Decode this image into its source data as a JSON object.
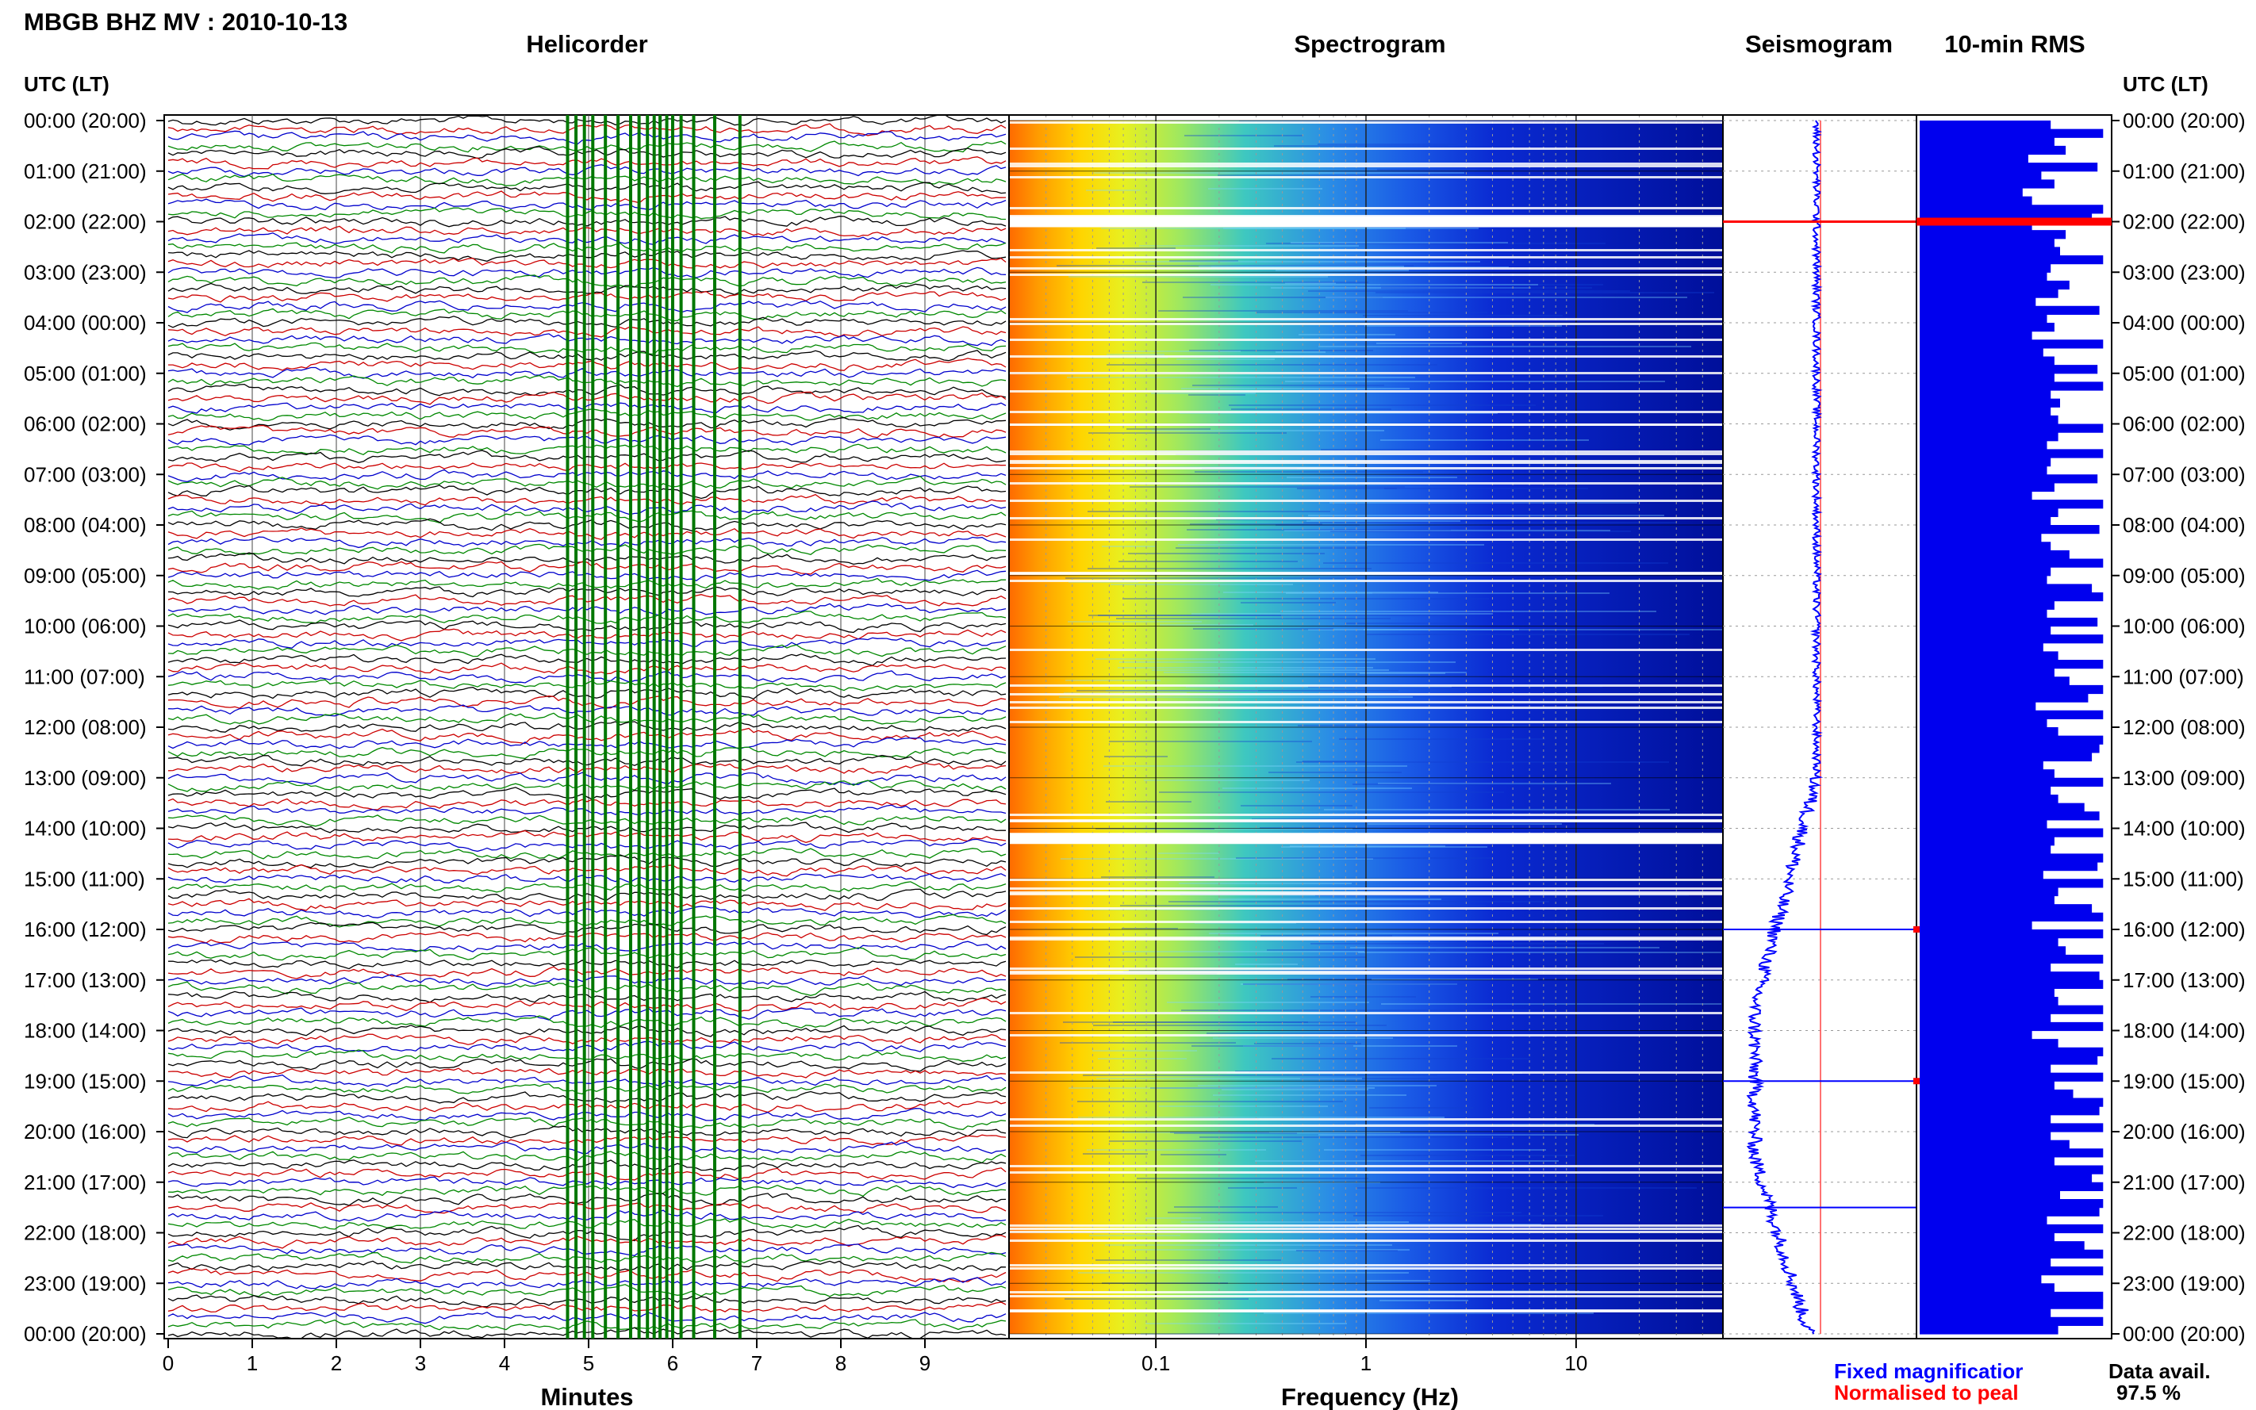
{
  "page": {
    "title": "MBGB BHZ MV : 2010-10-13"
  },
  "panels": {
    "helicorder": {
      "title": "Helicorder",
      "xlabel": "Minutes",
      "xticks": [
        "0",
        "1",
        "2",
        "3",
        "4",
        "5",
        "6",
        "7",
        "8",
        "9"
      ]
    },
    "spectrogram": {
      "title": "Spectrogram",
      "xlabel": "Frequency (Hz)",
      "xticks": [
        "0.1",
        "1",
        "10"
      ]
    },
    "seismogram": {
      "title": "Seismogram"
    },
    "rms": {
      "title": "10-min RMS"
    }
  },
  "time_axis": {
    "left_label": "UTC (LT)",
    "right_label": "UTC (LT)",
    "ticks": [
      "00:00 (20:00)",
      "01:00 (21:00)",
      "02:00 (22:00)",
      "03:00 (23:00)",
      "04:00 (00:00)",
      "05:00 (01:00)",
      "06:00 (02:00)",
      "07:00 (03:00)",
      "08:00 (04:00)",
      "09:00 (05:00)",
      "10:00 (06:00)",
      "11:00 (07:00)",
      "12:00 (08:00)",
      "13:00 (09:00)",
      "14:00 (10:00)",
      "15:00 (11:00)",
      "16:00 (12:00)",
      "17:00 (13:00)",
      "18:00 (14:00)",
      "19:00 (15:00)",
      "20:00 (16:00)",
      "21:00 (17:00)",
      "22:00 (18:00)",
      "23:00 (19:00)",
      "00:00 (20:00)"
    ]
  },
  "legend": {
    "fixed": "Fixed magnificatior",
    "normalised": "Normalised to peal",
    "fixed_color": "#0000ff",
    "normalised_color": "#ff0000"
  },
  "availability": {
    "label": "Data avail.",
    "value": "97.5 %"
  },
  "colors": {
    "trace_cycle": [
      "#000000",
      "#cc0000",
      "#0000cc",
      "#008800"
    ],
    "event_line": "#007700",
    "spectro_low": "#00008b",
    "rms_bar": "#0000ee"
  },
  "chart_data": {
    "type": "heatmap",
    "date": "2010-10-13",
    "channel": "MBGB BHZ MV",
    "hours": [
      "00:00",
      "01:00",
      "02:00",
      "03:00",
      "04:00",
      "05:00",
      "06:00",
      "07:00",
      "08:00",
      "09:00",
      "10:00",
      "11:00",
      "12:00",
      "13:00",
      "14:00",
      "15:00",
      "16:00",
      "17:00",
      "18:00",
      "19:00",
      "20:00",
      "21:00",
      "22:00",
      "23:00",
      "00:00"
    ],
    "helicorder": {
      "x_range_minutes": [
        0,
        10
      ],
      "traces_per_hour": 6,
      "event_minutes": [
        4.75,
        4.85,
        4.95,
        5.05,
        5.2,
        5.35,
        5.5,
        5.6,
        5.7,
        5.78,
        5.85,
        5.93,
        6.0,
        6.1,
        6.25,
        6.5,
        6.8
      ]
    },
    "spectrogram": {
      "x_scale": "log",
      "x_range_hz": [
        0.02,
        50
      ],
      "gap_hours": [
        2.0,
        14.2
      ]
    },
    "rms_10min": {
      "x_scale": "relative",
      "values": [
        0.7,
        0.98,
        0.72,
        0.78,
        0.58,
        0.95,
        0.65,
        0.72,
        0.55,
        0.6,
        0.98,
        0.92,
        0.6,
        0.78,
        0.72,
        0.75,
        0.98,
        0.7,
        0.68,
        0.8,
        0.74,
        0.62,
        0.96,
        0.68,
        0.72,
        0.6,
        0.98,
        0.66,
        0.72,
        0.95,
        0.72,
        0.98,
        0.7,
        0.75,
        0.7,
        0.74,
        0.98,
        0.74,
        0.68,
        0.98,
        0.7,
        0.68,
        0.95,
        0.72,
        0.6,
        0.98,
        0.74,
        0.7,
        0.96,
        0.65,
        0.7,
        0.8,
        0.98,
        0.7,
        0.68,
        0.92,
        0.98,
        0.72,
        0.68,
        0.95,
        0.7,
        0.98,
        0.66,
        0.74,
        0.98,
        0.72,
        0.8,
        0.98,
        0.9,
        0.62,
        0.98,
        0.68,
        0.74,
        0.98,
        0.96,
        0.92,
        0.66,
        0.72,
        0.98,
        0.7,
        0.74,
        0.88,
        0.96,
        0.68,
        0.98,
        0.72,
        0.7,
        0.98,
        0.95,
        0.66,
        0.98,
        0.74,
        0.72,
        0.92,
        0.98,
        0.6,
        0.98,
        0.74,
        0.78,
        0.98,
        0.7,
        0.96,
        0.98,
        0.72,
        0.74,
        0.98,
        0.7,
        0.98,
        0.6,
        0.74,
        0.98,
        0.95,
        0.7,
        0.98,
        0.72,
        0.82,
        0.98,
        0.96,
        0.7,
        0.98,
        0.7,
        0.8,
        0.98,
        0.72,
        0.98,
        0.92,
        0.98,
        0.75,
        0.98,
        0.96,
        0.68,
        0.98,
        0.72,
        0.88,
        0.98,
        0.7,
        0.98,
        0.65,
        0.72,
        0.98,
        0.98,
        0.7,
        0.98,
        0.74
      ],
      "gap_hour": 2.0,
      "spike_hours": [
        16.0,
        19.0
      ]
    },
    "seismogram": {
      "gap_hour": 2.0,
      "spike_hours": [
        16.0,
        19.0,
        21.5
      ]
    }
  }
}
